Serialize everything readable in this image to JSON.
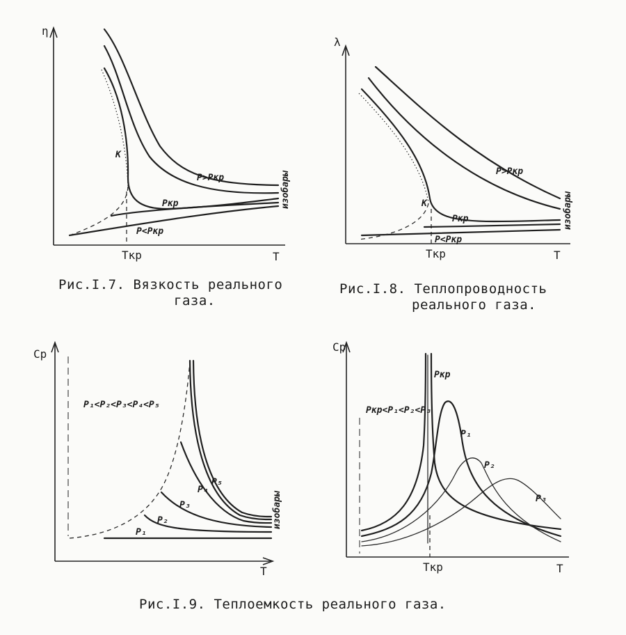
{
  "fig7": {
    "ylabel": "η",
    "xlabel": "T",
    "tick": "Tкр",
    "labels": {
      "high": "P>Pкр",
      "crit": "Pкр",
      "low": "P<Pкр",
      "point": "K",
      "isobars": "изобары"
    },
    "caption_line1": "Рис.I.7. Вязкость реального",
    "caption_line2": "газа."
  },
  "fig8": {
    "ylabel": "λ",
    "xlabel": "T",
    "tick": "Tкр",
    "labels": {
      "high": "P>Pкр",
      "crit": "Pкр",
      "low": "P<Pкр",
      "point": "K",
      "isobars": "изобары"
    },
    "caption_line1": "Рис.I.8. Теплопроводность",
    "caption_line2": "реального газа."
  },
  "fig9a": {
    "ylabel": "Cp",
    "xlabel": "T",
    "relation": "P₁<P₂<P₃<P₄<P₅",
    "labels": [
      "P₁",
      "P₂",
      "P₃",
      "P₄",
      "P₅"
    ],
    "isobars": "изобары"
  },
  "fig9b": {
    "ylabel": "Cp",
    "xlabel": "T",
    "tick": "Tкр",
    "relation": "Pкр<P₁<P₂<P₃",
    "labels": {
      "crit": "Pкр",
      "p1": "P₁",
      "p2": "P₂",
      "p3": "P₃"
    }
  },
  "fig9_caption": "Рис.I.9. Теплоемкость реального газа."
}
